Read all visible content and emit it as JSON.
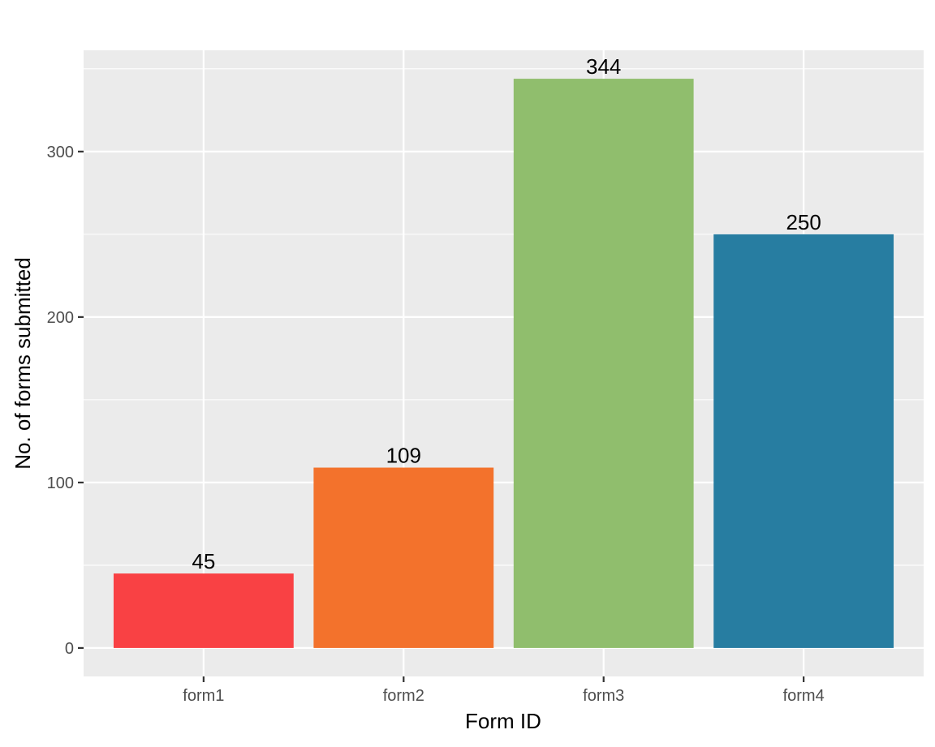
{
  "chart_data": {
    "type": "bar",
    "title": "",
    "xlabel": "Form ID",
    "ylabel": "No. of forms submitted",
    "categories": [
      "form1",
      "form2",
      "form3",
      "form4"
    ],
    "values": [
      45,
      109,
      344,
      250
    ],
    "data_labels": [
      "45",
      "109",
      "344",
      "250"
    ],
    "colors": [
      "#f94144",
      "#f3722c",
      "#90be6d",
      "#277da1"
    ],
    "ylim": [
      -17.2,
      361.2
    ],
    "y_ticks": [
      0,
      100,
      200,
      300
    ],
    "y_tick_labels": [
      "0",
      "100",
      "200",
      "300"
    ],
    "y_minor_ticks": [
      50,
      150,
      250,
      350
    ],
    "grid": true,
    "legend": "none",
    "panel_background": "#ebebeb"
  }
}
